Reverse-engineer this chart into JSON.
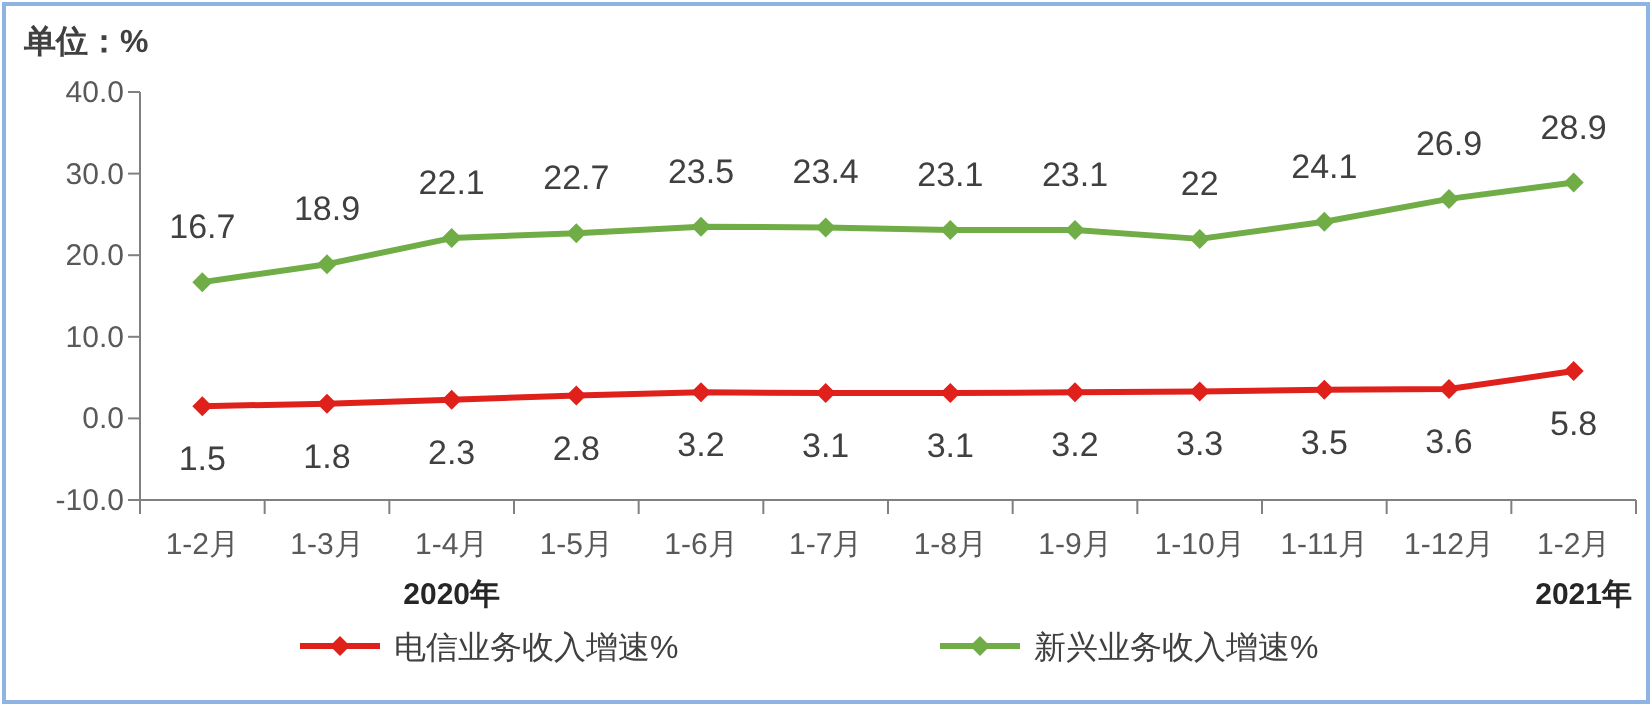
{
  "chart_data": {
    "type": "line",
    "ylabel": "单位：%",
    "categories": [
      "1-2月",
      "1-3月",
      "1-4月",
      "1-5月",
      "1-6月",
      "1-7月",
      "1-8月",
      "1-9月",
      "1-10月",
      "1-11月",
      "1-12月",
      "1-2月"
    ],
    "series": [
      {
        "name": "电信业务收入增速%",
        "color": "#e0201b",
        "values": [
          1.5,
          1.8,
          2.3,
          2.8,
          3.2,
          3.1,
          3.1,
          3.2,
          3.3,
          3.5,
          3.6,
          5.8
        ]
      },
      {
        "name": "新兴业务收入增速%",
        "color": "#70ad47",
        "values": [
          16.7,
          18.9,
          22.1,
          22.7,
          23.5,
          23.4,
          23.1,
          23.1,
          22,
          24.1,
          26.9,
          28.9
        ]
      }
    ],
    "ylim": [
      -10,
      40
    ],
    "yticks": [
      {
        "value": -10,
        "label": "-10.0"
      },
      {
        "value": 0,
        "label": "0.0"
      },
      {
        "value": 10,
        "label": "10.0"
      },
      {
        "value": 20,
        "label": "20.0"
      },
      {
        "value": 30,
        "label": "30.0"
      },
      {
        "value": 40,
        "label": "40.0"
      }
    ],
    "marker": "diamond",
    "data_labels": true,
    "grid": false,
    "legend": "bottom",
    "annotations": [
      "2020年",
      "2021年"
    ]
  }
}
